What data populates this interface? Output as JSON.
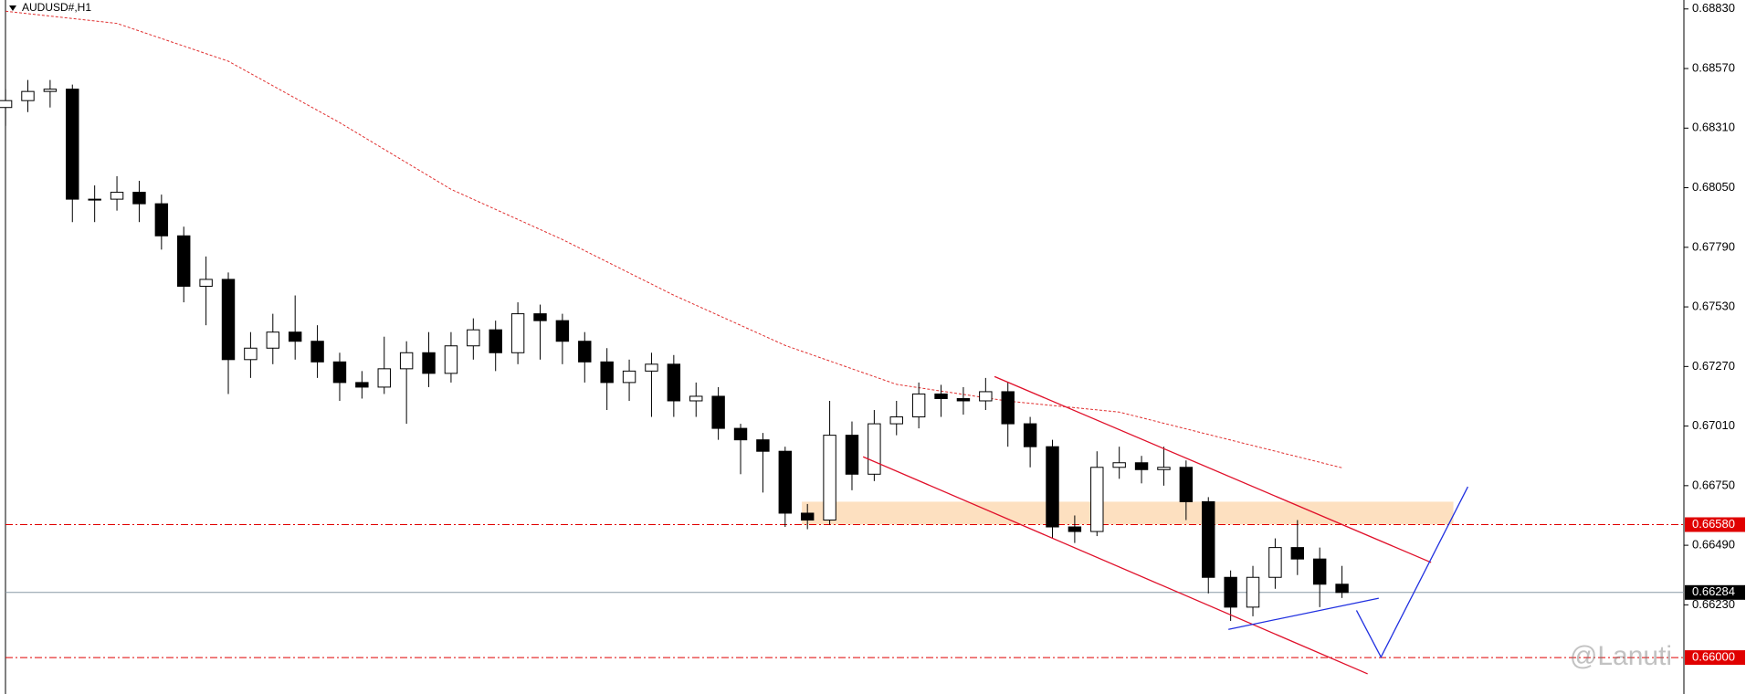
{
  "chart_data": {
    "type": "candlestick",
    "title": "AUDUSD#,H1",
    "watermark": "@Lanuti",
    "xlim": [
      -0.25,
      75.35
    ],
    "ylim": [
      0.65841,
      0.68869
    ],
    "yticks": [
      {
        "value": 0.6883,
        "label": "0.68830"
      },
      {
        "value": 0.6857,
        "label": "0.68570"
      },
      {
        "value": 0.6831,
        "label": "0.68310"
      },
      {
        "value": 0.6805,
        "label": "0.68050"
      },
      {
        "value": 0.6779,
        "label": "0.67790"
      },
      {
        "value": 0.6753,
        "label": "0.67530"
      },
      {
        "value": 0.6727,
        "label": "0.67270"
      },
      {
        "value": 0.6701,
        "label": "0.67010"
      },
      {
        "value": 0.6675,
        "label": "0.66750"
      },
      {
        "value": 0.6649,
        "label": "0.66490"
      },
      {
        "value": 0.6623,
        "label": "0.66230"
      }
    ],
    "open": [
      0.684,
      0.6843,
      0.6847,
      0.6848,
      0.68,
      0.68,
      0.6803,
      0.6798,
      0.6784,
      0.6762,
      0.6765,
      0.673,
      0.6735,
      0.6742,
      0.6738,
      0.6729,
      0.672,
      0.6718,
      0.6726,
      0.6733,
      0.6724,
      0.6736,
      0.6743,
      0.6733,
      0.675,
      0.6747,
      0.6738,
      0.6729,
      0.672,
      0.6725,
      0.6728,
      0.6712,
      0.6714,
      0.67,
      0.6695,
      0.669,
      0.6663,
      0.666,
      0.6697,
      0.668,
      0.6702,
      0.6705,
      0.6715,
      0.6713,
      0.6712,
      0.6716,
      0.6702,
      0.6692,
      0.6657,
      0.6655,
      0.6683,
      0.6685,
      0.6682,
      0.6683,
      0.6668,
      0.6635,
      0.6622,
      0.6635,
      0.6648,
      0.6643,
      0.6632
    ],
    "high": [
      0.6848,
      0.6852,
      0.6852,
      0.685,
      0.6806,
      0.681,
      0.6808,
      0.6802,
      0.6788,
      0.6775,
      0.6768,
      0.6742,
      0.675,
      0.6758,
      0.6745,
      0.6733,
      0.6725,
      0.674,
      0.6738,
      0.6742,
      0.6742,
      0.6748,
      0.6747,
      0.6755,
      0.6754,
      0.675,
      0.6742,
      0.6735,
      0.673,
      0.6733,
      0.6732,
      0.672,
      0.6718,
      0.6702,
      0.6698,
      0.6692,
      0.6667,
      0.6712,
      0.6703,
      0.6708,
      0.6712,
      0.672,
      0.6719,
      0.6718,
      0.6722,
      0.672,
      0.6705,
      0.6695,
      0.6662,
      0.669,
      0.6692,
      0.6688,
      0.6692,
      0.6686,
      0.667,
      0.6638,
      0.664,
      0.6652,
      0.666,
      0.6648,
      0.664
    ],
    "low": [
      0.6832,
      0.6838,
      0.684,
      0.679,
      0.679,
      0.6795,
      0.679,
      0.6778,
      0.6755,
      0.6745,
      0.6715,
      0.6722,
      0.6728,
      0.673,
      0.6722,
      0.6712,
      0.6713,
      0.6715,
      0.6702,
      0.6718,
      0.672,
      0.673,
      0.6725,
      0.6728,
      0.673,
      0.6728,
      0.672,
      0.6708,
      0.6712,
      0.6705,
      0.6705,
      0.6705,
      0.6695,
      0.668,
      0.6672,
      0.6657,
      0.6656,
      0.6658,
      0.6673,
      0.6677,
      0.6697,
      0.67,
      0.6705,
      0.6706,
      0.6708,
      0.6692,
      0.6683,
      0.6652,
      0.665,
      0.6653,
      0.6678,
      0.6676,
      0.6675,
      0.666,
      0.6628,
      0.6616,
      0.6618,
      0.663,
      0.6636,
      0.6622,
      0.6626
    ],
    "close": [
      0.6843,
      0.6847,
      0.6848,
      0.68,
      0.68,
      0.6803,
      0.6798,
      0.6784,
      0.6762,
      0.6765,
      0.673,
      0.6735,
      0.6742,
      0.6738,
      0.6729,
      0.672,
      0.6718,
      0.6726,
      0.6733,
      0.6724,
      0.6736,
      0.6743,
      0.6733,
      0.675,
      0.6747,
      0.6738,
      0.6729,
      0.672,
      0.6725,
      0.6728,
      0.6712,
      0.6714,
      0.67,
      0.6695,
      0.669,
      0.6663,
      0.666,
      0.6697,
      0.668,
      0.6702,
      0.6705,
      0.6715,
      0.6713,
      0.6712,
      0.6716,
      0.6702,
      0.6692,
      0.6657,
      0.6655,
      0.6683,
      0.6685,
      0.6682,
      0.6683,
      0.6668,
      0.6635,
      0.6622,
      0.6635,
      0.6648,
      0.6643,
      0.6632,
      0.66284
    ],
    "moving_average": {
      "color": "#e03030",
      "x": [
        0,
        5,
        10,
        15,
        20,
        25,
        30,
        35,
        40,
        45,
        50,
        55,
        60
      ],
      "values": [
        0.6882,
        0.68767,
        0.68602,
        0.68334,
        0.68043,
        0.67824,
        0.67581,
        0.67362,
        0.67192,
        0.67119,
        0.67071,
        0.66949,
        0.66828
      ]
    },
    "zone": {
      "color": "#fde0c0",
      "x": [
        35.75,
        65
      ],
      "values": [
        0.6658,
        0.6668
      ]
    },
    "trendlines": [
      {
        "color": "#e0102a",
        "x": [
          44.4,
          64
        ],
        "values": [
          0.67226,
          0.66415
        ]
      },
      {
        "color": "#e0102a",
        "x": [
          38.5,
          61.15
        ],
        "values": [
          0.66876,
          0.65929
        ]
      },
      {
        "color": "#2030e0",
        "x": [
          54.9,
          61.65
        ],
        "values": [
          0.66123,
          0.66259
        ]
      },
      {
        "color": "#2030e0",
        "x": [
          60.65,
          61.75,
          65.65
        ],
        "values": [
          0.66206,
          0.66002,
          0.66745
        ]
      }
    ],
    "levels": [
      {
        "value": 0.6658,
        "label": "0.66580",
        "color": "#e00000",
        "dashed": true
      },
      {
        "value": 0.66284,
        "label": "0.66284",
        "color": "#000000",
        "dashed": false
      },
      {
        "value": 0.66,
        "label": "0.66000",
        "color": "#e00000",
        "dashed": true
      }
    ]
  }
}
